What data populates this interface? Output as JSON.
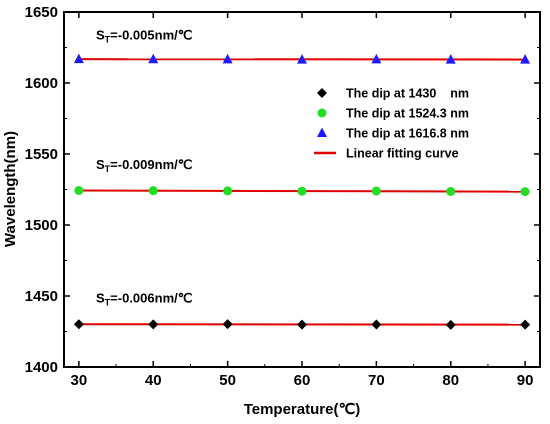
{
  "chart_data": {
    "type": "scatter",
    "title": "",
    "xlabel": "Temperature(℃)",
    "ylabel": "Wavelength(nm)",
    "xlim": [
      28,
      92
    ],
    "ylim": [
      1400,
      1650
    ],
    "xticks": [
      30,
      40,
      50,
      60,
      70,
      80,
      90
    ],
    "yticks": [
      1400,
      1450,
      1500,
      1550,
      1600,
      1650
    ],
    "x": [
      30,
      40,
      50,
      60,
      70,
      80,
      90
    ],
    "series": [
      {
        "name": "The dip at 1430    nm",
        "marker": "diamond",
        "color": "#000000",
        "values": [
          1430.1,
          1430.0,
          1430.2,
          1429.8,
          1429.9,
          1429.7,
          1429.8
        ]
      },
      {
        "name": "The dip at 1524.3 nm",
        "marker": "circle",
        "color": "#22dd22",
        "values": [
          1524.3,
          1524.2,
          1524.0,
          1523.8,
          1523.9,
          1523.6,
          1523.5
        ]
      },
      {
        "name": "The dip at 1616.8 nm",
        "marker": "triangle",
        "color": "#1a1aff",
        "values": [
          1616.8,
          1616.7,
          1616.6,
          1616.5,
          1616.6,
          1616.5,
          1616.5
        ]
      }
    ],
    "fit": {
      "name": "Linear fitting curve",
      "color": "#e00000",
      "lines": [
        {
          "y_start": 1430.1,
          "y_end": 1429.8
        },
        {
          "y_start": 1524.3,
          "y_end": 1523.5
        },
        {
          "y_start": 1616.8,
          "y_end": 1616.5
        }
      ]
    },
    "annotations": [
      {
        "base": "S",
        "sub": "T",
        "rest": "=-0.005nm/℃"
      },
      {
        "base": "S",
        "sub": "T",
        "rest": "=-0.009nm/℃"
      },
      {
        "base": "S",
        "sub": "T",
        "rest": "=-0.006nm/℃"
      }
    ],
    "legend_position": "right",
    "grid": false
  }
}
